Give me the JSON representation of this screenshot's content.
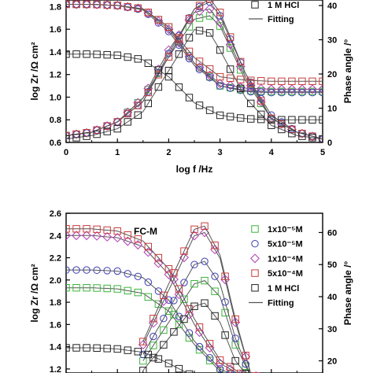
{
  "chart_data": [
    {
      "type": "line",
      "panel_label": "",
      "xlabel": "log f /Hz",
      "ylabel": "log Zr /Ω cm²",
      "y2label": "Phase angle /°",
      "xlim": [
        0,
        5
      ],
      "ylim": [
        0.6,
        1.9
      ],
      "y2lim": [
        0,
        43
      ],
      "xticks": [
        "0",
        "1",
        "2",
        "3",
        "4",
        "5"
      ],
      "yticks": [
        "0.6",
        "0.8",
        "1.0",
        "1.2",
        "1.4",
        "1.6",
        "1.8"
      ],
      "y2ticks": [
        "0",
        "10",
        "20",
        "30",
        "40"
      ],
      "legend": {
        "placement": "top-right",
        "entries": [
          "1 M HCl",
          "Fitting"
        ]
      },
      "series": [
        {
          "name": "",
          "marker": "square",
          "color": "#3cb43c",
          "logZ": [
            [
              0,
              1.82
            ],
            [
              0.5,
              1.82
            ],
            [
              1,
              1.81
            ],
            [
              1.5,
              1.78
            ],
            [
              2,
              1.62
            ],
            [
              2.5,
              1.3
            ],
            [
              3,
              1.1
            ],
            [
              3.5,
              1.06
            ],
            [
              4,
              1.05
            ],
            [
              4.5,
              1.05
            ],
            [
              5,
              1.05
            ]
          ],
          "phase": [
            [
              0,
              2
            ],
            [
              0.5,
              3
            ],
            [
              1,
              6
            ],
            [
              1.5,
              13
            ],
            [
              2,
              25
            ],
            [
              2.5,
              36
            ],
            [
              2.8,
              37
            ],
            [
              3,
              34
            ],
            [
              3.5,
              18
            ],
            [
              4,
              7
            ],
            [
              4.5,
              3
            ],
            [
              5,
              1
            ]
          ]
        },
        {
          "name": "",
          "marker": "diamond",
          "color": "#b43cb4",
          "logZ": [
            [
              0,
              1.82
            ],
            [
              0.5,
              1.82
            ],
            [
              1,
              1.81
            ],
            [
              1.5,
              1.78
            ],
            [
              2,
              1.6
            ],
            [
              2.5,
              1.3
            ],
            [
              3,
              1.12
            ],
            [
              3.5,
              1.08
            ],
            [
              4,
              1.07
            ],
            [
              4.5,
              1.07
            ],
            [
              5,
              1.07
            ]
          ],
          "phase": [
            [
              0,
              2
            ],
            [
              0.5,
              3
            ],
            [
              1,
              6
            ],
            [
              1.5,
              13
            ],
            [
              2,
              27
            ],
            [
              2.5,
              38
            ],
            [
              2.8,
              39
            ],
            [
              3,
              35
            ],
            [
              3.5,
              19
            ],
            [
              4,
              7
            ],
            [
              4.5,
              3
            ],
            [
              5,
              1
            ]
          ]
        },
        {
          "name": "",
          "marker": "circle",
          "color": "#3c3cb4",
          "logZ": [
            [
              0,
              1.82
            ],
            [
              0.5,
              1.82
            ],
            [
              1,
              1.81
            ],
            [
              1.5,
              1.77
            ],
            [
              2,
              1.58
            ],
            [
              2.5,
              1.28
            ],
            [
              3,
              1.1
            ],
            [
              3.5,
              1.05
            ],
            [
              4,
              1.04
            ],
            [
              4.5,
              1.04
            ],
            [
              5,
              1.04
            ]
          ],
          "phase": [
            [
              0,
              2
            ],
            [
              0.5,
              3
            ],
            [
              1,
              6
            ],
            [
              1.5,
              12
            ],
            [
              2,
              26
            ],
            [
              2.5,
              39
            ],
            [
              2.8,
              41
            ],
            [
              3,
              37
            ],
            [
              3.5,
              20
            ],
            [
              4,
              8
            ],
            [
              4.5,
              3
            ],
            [
              5,
              1
            ]
          ]
        },
        {
          "name": "",
          "marker": "square",
          "color": "#c83c3c",
          "logZ": [
            [
              0,
              1.82
            ],
            [
              0.5,
              1.82
            ],
            [
              1,
              1.81
            ],
            [
              1.5,
              1.78
            ],
            [
              2,
              1.62
            ],
            [
              2.5,
              1.35
            ],
            [
              3,
              1.18
            ],
            [
              3.5,
              1.15
            ],
            [
              4,
              1.14
            ],
            [
              4.5,
              1.14
            ],
            [
              5,
              1.14
            ]
          ],
          "phase": [
            [
              0,
              2
            ],
            [
              0.5,
              3
            ],
            [
              1,
              6
            ],
            [
              1.5,
              12
            ],
            [
              2,
              25
            ],
            [
              2.5,
              39
            ],
            [
              2.8,
              42
            ],
            [
              3,
              38
            ],
            [
              3.5,
              20
            ],
            [
              4,
              7
            ],
            [
              4.5,
              3
            ],
            [
              5,
              1
            ]
          ]
        },
        {
          "name": "1 M HCl",
          "marker": "square",
          "color": "#222222",
          "logZ": [
            [
              0,
              1.38
            ],
            [
              0.5,
              1.38
            ],
            [
              1,
              1.37
            ],
            [
              1.5,
              1.33
            ],
            [
              2,
              1.18
            ],
            [
              2.5,
              0.95
            ],
            [
              3,
              0.84
            ],
            [
              3.5,
              0.81
            ],
            [
              4,
              0.8
            ],
            [
              4.5,
              0.8
            ],
            [
              5,
              0.8
            ]
          ],
          "phase": [
            [
              0,
              1
            ],
            [
              0.5,
              2
            ],
            [
              1,
              4
            ],
            [
              1.5,
              9
            ],
            [
              2,
              21
            ],
            [
              2.5,
              33
            ],
            [
              2.8,
              32
            ],
            [
              3,
              27
            ],
            [
              3.5,
              13
            ],
            [
              4,
              5
            ],
            [
              4.5,
              2
            ],
            [
              5,
              1
            ]
          ]
        }
      ]
    },
    {
      "type": "line",
      "panel_label": "FC-M",
      "xlabel": "",
      "ylabel": "log Zr /Ω cm²",
      "y2label": "Phase angle /°",
      "xlim": [
        0,
        5
      ],
      "ylim": [
        1.1,
        2.6
      ],
      "y2lim": [
        14,
        66
      ],
      "yticks": [
        "1.2",
        "1.4",
        "1.6",
        "1.8",
        "2.0",
        "2.2",
        "2.4",
        "2.6"
      ],
      "y2ticks": [
        "20",
        "30",
        "40",
        "50",
        "60"
      ],
      "legend": {
        "placement": "top-right",
        "entries": [
          "1x10⁻⁵M",
          "5x10⁻⁵M",
          "1x10⁻⁴M",
          "5x10⁻⁴M",
          "1 M HCl",
          "Fitting"
        ]
      },
      "series": [
        {
          "name": "1x10⁻⁵M",
          "marker": "square",
          "color": "#3cb43c",
          "logZ": [
            [
              0,
              1.93
            ],
            [
              0.5,
              1.93
            ],
            [
              1,
              1.92
            ],
            [
              1.5,
              1.88
            ],
            [
              2,
              1.72
            ],
            [
              2.5,
              1.42
            ],
            [
              3,
              1.18
            ],
            [
              3.5,
              1.1
            ],
            [
              4,
              1.1
            ],
            [
              4.5,
              1.1
            ],
            [
              5,
              1.1
            ]
          ],
          "phase": [
            [
              1.5,
              20
            ],
            [
              2,
              32
            ],
            [
              2.5,
              44
            ],
            [
              2.7,
              45
            ],
            [
              3,
              40
            ],
            [
              3.3,
              25
            ],
            [
              3.6,
              15
            ],
            [
              4,
              13
            ],
            [
              4.5,
              13
            ],
            [
              5,
              13
            ]
          ]
        },
        {
          "name": "5x10⁻⁵M",
          "marker": "circle",
          "color": "#3c3cb4",
          "logZ": [
            [
              0,
              2.09
            ],
            [
              0.5,
              2.09
            ],
            [
              1,
              2.08
            ],
            [
              1.5,
              2.02
            ],
            [
              2,
              1.82
            ],
            [
              2.5,
              1.45
            ],
            [
              3,
              1.2
            ],
            [
              3.5,
              1.1
            ],
            [
              4,
              1.1
            ],
            [
              4.5,
              1.1
            ],
            [
              5,
              1.1
            ]
          ],
          "phase": [
            [
              1.5,
              22
            ],
            [
              2,
              36
            ],
            [
              2.5,
              50
            ],
            [
              2.7,
              51
            ],
            [
              3,
              44
            ],
            [
              3.3,
              27
            ],
            [
              3.6,
              15
            ],
            [
              4,
              13
            ],
            [
              4.5,
              13
            ],
            [
              5,
              13
            ]
          ]
        },
        {
          "name": "1x10⁻⁴M",
          "marker": "diamond",
          "color": "#b43cb4",
          "logZ": [
            [
              0,
              2.4
            ],
            [
              0.5,
              2.4
            ],
            [
              1,
              2.38
            ],
            [
              1.5,
              2.3
            ],
            [
              2,
              2.05
            ],
            [
              2.5,
              1.6
            ],
            [
              3,
              1.25
            ],
            [
              3.5,
              1.12
            ],
            [
              4,
              1.1
            ],
            [
              4.5,
              1.1
            ],
            [
              5,
              1.1
            ]
          ],
          "phase": [
            [
              1.5,
              25
            ],
            [
              2,
              42
            ],
            [
              2.5,
              59
            ],
            [
              2.7,
              60
            ],
            [
              3,
              52
            ],
            [
              3.3,
              32
            ],
            [
              3.6,
              16
            ],
            [
              4,
              13
            ],
            [
              4.5,
              13
            ],
            [
              5,
              13
            ]
          ]
        },
        {
          "name": "5x10⁻⁴M",
          "marker": "square",
          "color": "#c83c3c",
          "logZ": [
            [
              0,
              2.46
            ],
            [
              0.5,
              2.46
            ],
            [
              1,
              2.44
            ],
            [
              1.5,
              2.35
            ],
            [
              2,
              2.1
            ],
            [
              2.5,
              1.65
            ],
            [
              3,
              1.28
            ],
            [
              3.5,
              1.13
            ],
            [
              4,
              1.1
            ],
            [
              4.5,
              1.1
            ],
            [
              5,
              1.1
            ]
          ],
          "phase": [
            [
              1.5,
              26
            ],
            [
              2,
              44
            ],
            [
              2.5,
              61
            ],
            [
              2.7,
              62
            ],
            [
              3,
              53
            ],
            [
              3.3,
              33
            ],
            [
              3.6,
              16
            ],
            [
              4,
              13
            ],
            [
              4.5,
              13
            ],
            [
              5,
              13
            ]
          ]
        },
        {
          "name": "1 M HCl",
          "marker": "square",
          "color": "#222222",
          "logZ": [
            [
              0,
              1.39
            ],
            [
              0.5,
              1.39
            ],
            [
              1,
              1.38
            ],
            [
              1.5,
              1.35
            ],
            [
              2,
              1.25
            ],
            [
              2.5,
              1.13
            ],
            [
              3,
              1.1
            ],
            [
              3.5,
              1.1
            ],
            [
              4,
              1.1
            ],
            [
              4.5,
              1.1
            ],
            [
              5,
              1.1
            ]
          ],
          "phase": [
            [
              1.5,
              17
            ],
            [
              2,
              27
            ],
            [
              2.5,
              37
            ],
            [
              2.7,
              38
            ],
            [
              3,
              32
            ],
            [
              3.3,
              20
            ],
            [
              3.6,
              14
            ],
            [
              4,
              13
            ],
            [
              4.5,
              13
            ],
            [
              5,
              13
            ]
          ]
        }
      ]
    }
  ]
}
